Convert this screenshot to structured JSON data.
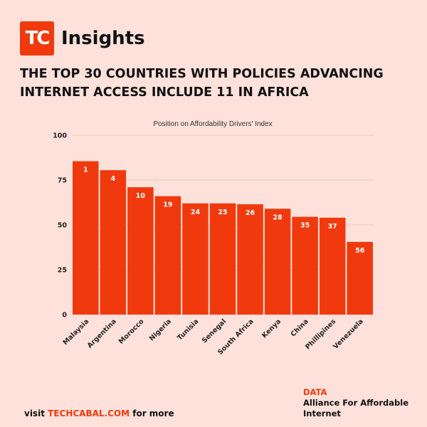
{
  "brand": {
    "logo_text": "TC",
    "name": "Insights"
  },
  "headline": "THE TOP 30 COUNTRIES WITH POLICIES ADVANCING INTERNET ACCESS INCLUDE 11 IN AFRICA",
  "footer": {
    "visit_prefix": "visit",
    "site": "TECHCABAL.COM",
    "visit_suffix": "for more"
  },
  "source": {
    "label": "DATA",
    "name": "Alliance For Affordable Internet"
  },
  "colors": {
    "bar": "#f03a0e",
    "background": "#fde1da",
    "grid": "#f2c6bb"
  },
  "chart_data": {
    "type": "bar",
    "title": "Position on Affordability Drivers' Index",
    "categories": [
      "Malaysia",
      "Argentina",
      "Morocco",
      "Nigeria",
      "Tunisia",
      "Senegal",
      "South Africa",
      "Kenya",
      "China",
      "Phillipines",
      "Venezuela"
    ],
    "values": [
      85.5,
      80.5,
      71,
      66,
      62,
      62,
      61.5,
      59,
      54.5,
      54,
      40.5
    ],
    "data_labels": [
      "1",
      "4",
      "10",
      "19",
      "24",
      "25",
      "26",
      "28",
      "35",
      "37",
      "56"
    ],
    "ylim": [
      0,
      100
    ],
    "yticks": [
      0,
      25,
      50,
      75,
      100
    ],
    "grid": true
  }
}
